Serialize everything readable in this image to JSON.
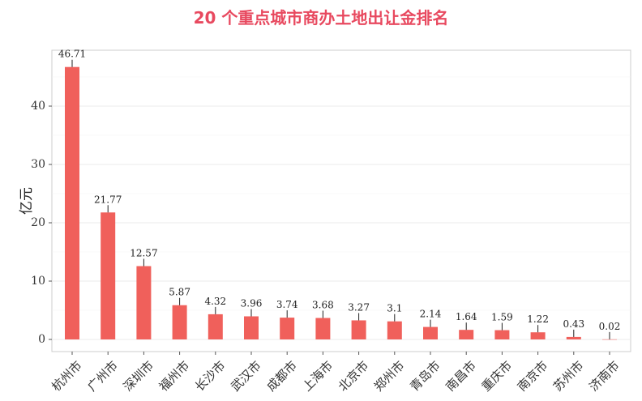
{
  "chart_data": {
    "type": "bar",
    "title": "20 个重点城市商办土地出让金排名",
    "xlabel": "",
    "ylabel": "亿元",
    "ylim": [
      0,
      48.5
    ],
    "yticks": [
      0,
      10,
      20,
      30,
      40
    ],
    "grid": true,
    "bar_color": "#f0605b",
    "categories": [
      "杭州市",
      "广州市",
      "深圳市",
      "福州市",
      "长沙市",
      "武汉市",
      "成都市",
      "上海市",
      "北京市",
      "郑州市",
      "青岛市",
      "南昌市",
      "重庆市",
      "南京市",
      "苏州市",
      "济南市"
    ],
    "values": [
      46.71,
      21.77,
      12.57,
      5.87,
      4.32,
      3.96,
      3.74,
      3.68,
      3.27,
      3.1,
      2.14,
      1.64,
      1.59,
      1.22,
      0.43,
      0.02
    ],
    "data_labels": [
      "46.71",
      "21.77",
      "12.57",
      "5.87",
      "4.32",
      "3.96",
      "3.74",
      "3.68",
      "3.27",
      "3.1",
      "2.14",
      "1.64",
      "1.59",
      "1.22",
      "0.43",
      "0.02"
    ]
  },
  "colors": {
    "title": "#e8495f",
    "bar": "#f0605b",
    "grid": "#ebebeb",
    "panel_border": "#cccccc"
  }
}
